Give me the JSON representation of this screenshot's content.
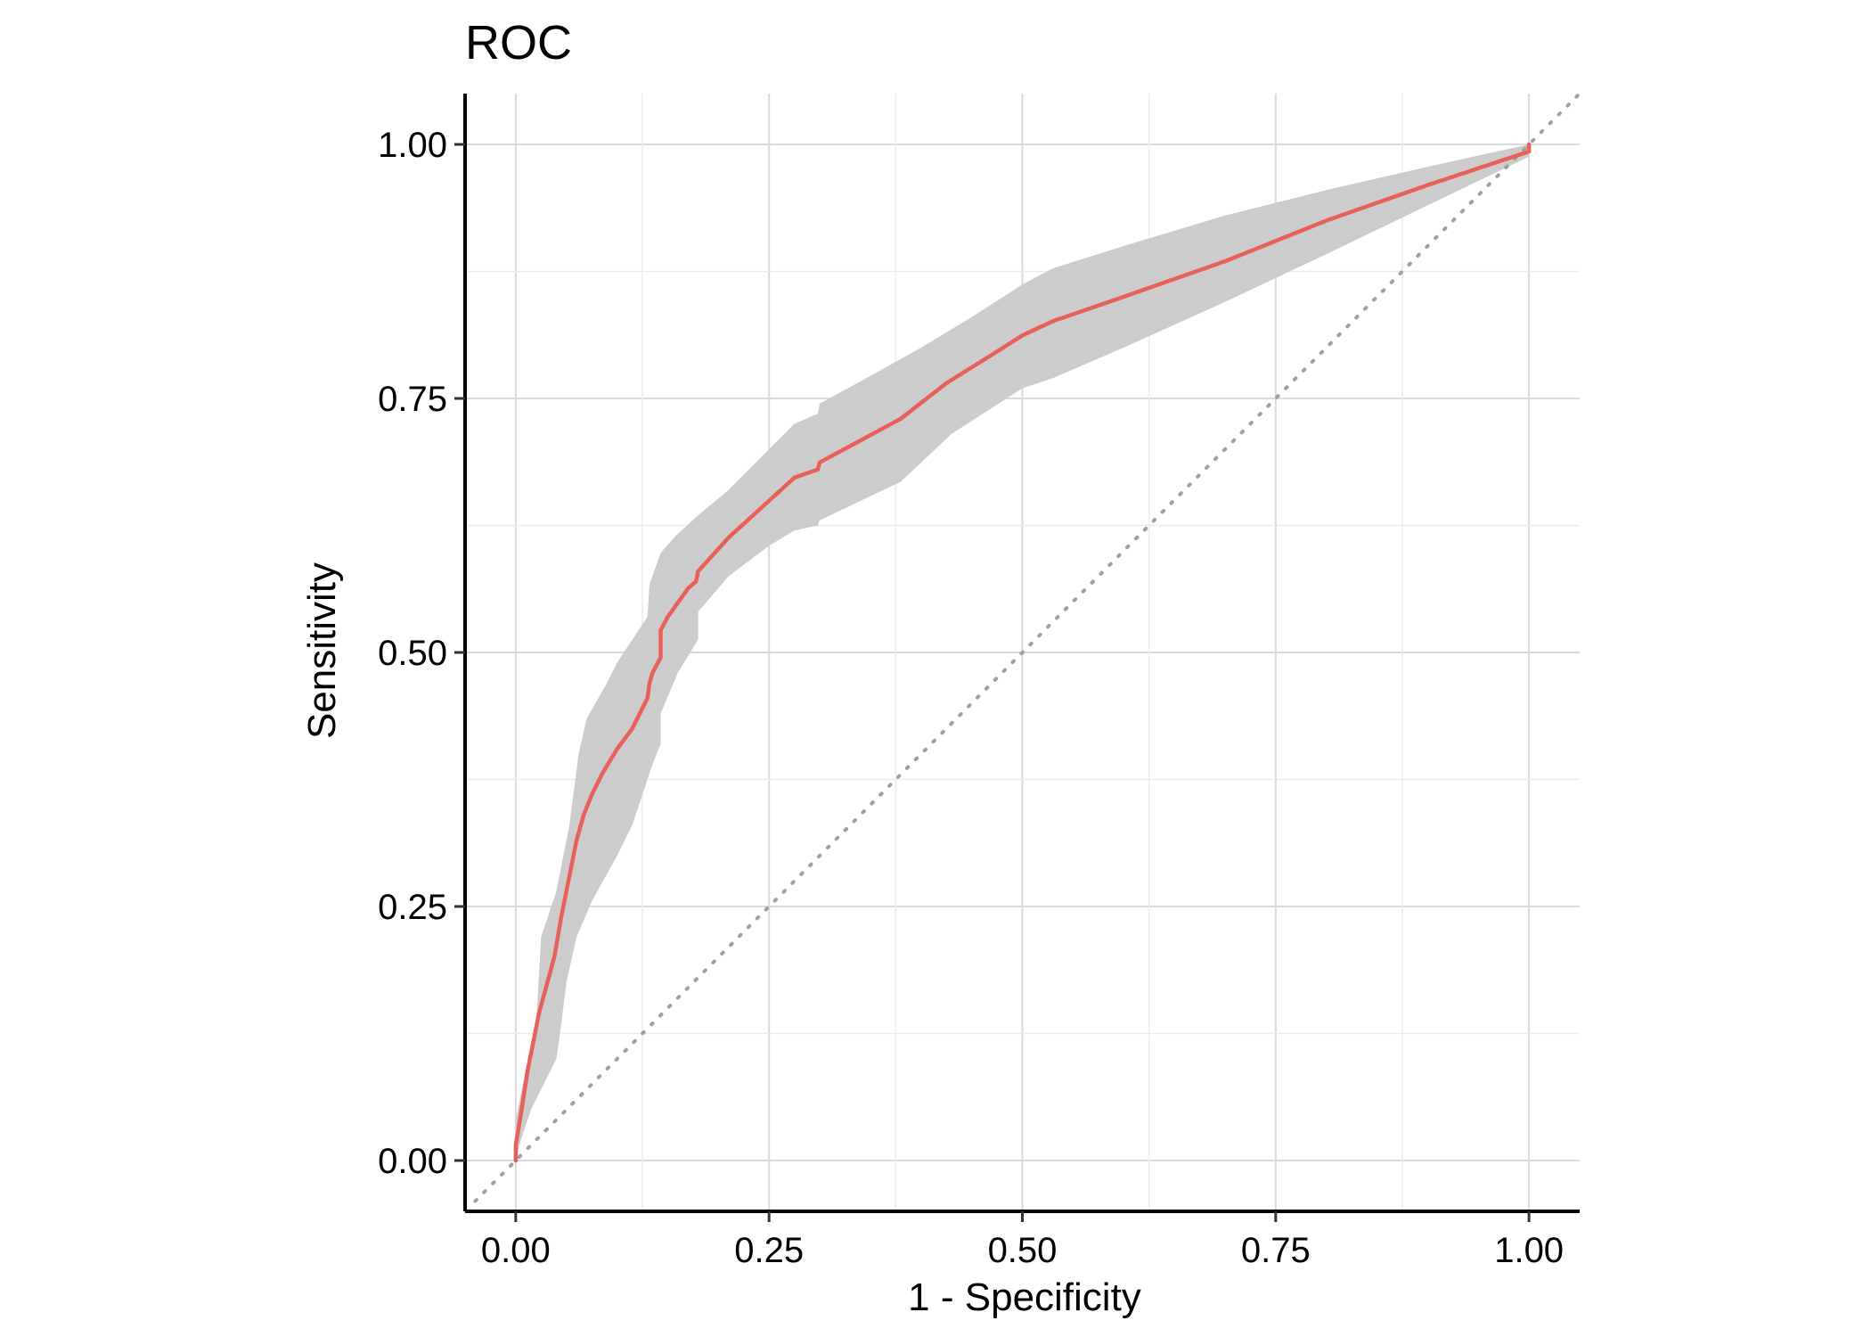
{
  "chart_data": {
    "type": "line",
    "title": "ROC",
    "xlabel": "1 - Specificity",
    "ylabel": "Sensitivity",
    "xlim": [
      -0.05,
      1.05
    ],
    "ylim": [
      -0.05,
      1.05
    ],
    "x_ticks": [
      {
        "value": 0.0,
        "label": "0.00"
      },
      {
        "value": 0.25,
        "label": "0.25"
      },
      {
        "value": 0.5,
        "label": "0.50"
      },
      {
        "value": 0.75,
        "label": "0.75"
      },
      {
        "value": 1.0,
        "label": "1.00"
      }
    ],
    "y_ticks": [
      {
        "value": 0.0,
        "label": "0.00"
      },
      {
        "value": 0.25,
        "label": "0.25"
      },
      {
        "value": 0.5,
        "label": "0.50"
      },
      {
        "value": 0.75,
        "label": "0.75"
      },
      {
        "value": 1.0,
        "label": "1.00"
      }
    ],
    "grid": true,
    "reference_line": {
      "style": "dotted",
      "color": "#a0a0a0",
      "from": [
        -0.04,
        -0.04
      ],
      "to": [
        1.05,
        1.05
      ]
    },
    "series": [
      {
        "color": "#e8605a",
        "points": [
          [
            0.0,
            0.0
          ],
          [
            0.0,
            0.015
          ],
          [
            0.005,
            0.045
          ],
          [
            0.012,
            0.09
          ],
          [
            0.023,
            0.145
          ],
          [
            0.038,
            0.2
          ],
          [
            0.045,
            0.24
          ],
          [
            0.053,
            0.28
          ],
          [
            0.06,
            0.315
          ],
          [
            0.067,
            0.34
          ],
          [
            0.075,
            0.36
          ],
          [
            0.085,
            0.38
          ],
          [
            0.1,
            0.405
          ],
          [
            0.115,
            0.425
          ],
          [
            0.13,
            0.455
          ],
          [
            0.132,
            0.47
          ],
          [
            0.135,
            0.48
          ],
          [
            0.143,
            0.495
          ],
          [
            0.143,
            0.522
          ],
          [
            0.15,
            0.535
          ],
          [
            0.17,
            0.563
          ],
          [
            0.178,
            0.57
          ],
          [
            0.18,
            0.58
          ],
          [
            0.21,
            0.613
          ],
          [
            0.275,
            0.672
          ],
          [
            0.298,
            0.68
          ],
          [
            0.3,
            0.687
          ],
          [
            0.38,
            0.73
          ],
          [
            0.425,
            0.765
          ],
          [
            0.47,
            0.793
          ],
          [
            0.5,
            0.812
          ],
          [
            0.53,
            0.826
          ],
          [
            0.6,
            0.85
          ],
          [
            0.7,
            0.885
          ],
          [
            0.8,
            0.925
          ],
          [
            0.9,
            0.96
          ],
          [
            1.0,
            0.993
          ],
          [
            1.0,
            1.0
          ]
        ]
      }
    ],
    "confidence_band": {
      "color": "#cccccc",
      "upper": [
        [
          0.0,
          0.04
        ],
        [
          0.01,
          0.09
        ],
        [
          0.02,
          0.13
        ],
        [
          0.025,
          0.22
        ],
        [
          0.04,
          0.265
        ],
        [
          0.053,
          0.33
        ],
        [
          0.062,
          0.4
        ],
        [
          0.07,
          0.435
        ],
        [
          0.09,
          0.47
        ],
        [
          0.1,
          0.49
        ],
        [
          0.13,
          0.535
        ],
        [
          0.132,
          0.567
        ],
        [
          0.143,
          0.598
        ],
        [
          0.158,
          0.615
        ],
        [
          0.18,
          0.635
        ],
        [
          0.21,
          0.66
        ],
        [
          0.245,
          0.695
        ],
        [
          0.275,
          0.725
        ],
        [
          0.298,
          0.735
        ],
        [
          0.3,
          0.745
        ],
        [
          0.35,
          0.772
        ],
        [
          0.4,
          0.8
        ],
        [
          0.45,
          0.83
        ],
        [
          0.5,
          0.862
        ],
        [
          0.53,
          0.878
        ],
        [
          0.6,
          0.9
        ],
        [
          0.7,
          0.93
        ],
        [
          0.8,
          0.955
        ],
        [
          0.9,
          0.978
        ],
        [
          1.0,
          1.0
        ]
      ],
      "lower": [
        [
          0.0,
          0.0
        ],
        [
          0.005,
          0.02
        ],
        [
          0.015,
          0.05
        ],
        [
          0.025,
          0.07
        ],
        [
          0.04,
          0.1
        ],
        [
          0.045,
          0.135
        ],
        [
          0.05,
          0.175
        ],
        [
          0.06,
          0.22
        ],
        [
          0.075,
          0.255
        ],
        [
          0.1,
          0.3
        ],
        [
          0.115,
          0.33
        ],
        [
          0.13,
          0.375
        ],
        [
          0.135,
          0.39
        ],
        [
          0.143,
          0.41
        ],
        [
          0.143,
          0.44
        ],
        [
          0.16,
          0.48
        ],
        [
          0.18,
          0.513
        ],
        [
          0.18,
          0.54
        ],
        [
          0.21,
          0.575
        ],
        [
          0.25,
          0.605
        ],
        [
          0.275,
          0.62
        ],
        [
          0.298,
          0.625
        ],
        [
          0.3,
          0.63
        ],
        [
          0.38,
          0.668
        ],
        [
          0.43,
          0.715
        ],
        [
          0.5,
          0.76
        ],
        [
          0.53,
          0.77
        ],
        [
          0.6,
          0.8
        ],
        [
          0.7,
          0.845
        ],
        [
          0.8,
          0.892
        ],
        [
          0.9,
          0.94
        ],
        [
          1.0,
          0.988
        ]
      ]
    }
  }
}
